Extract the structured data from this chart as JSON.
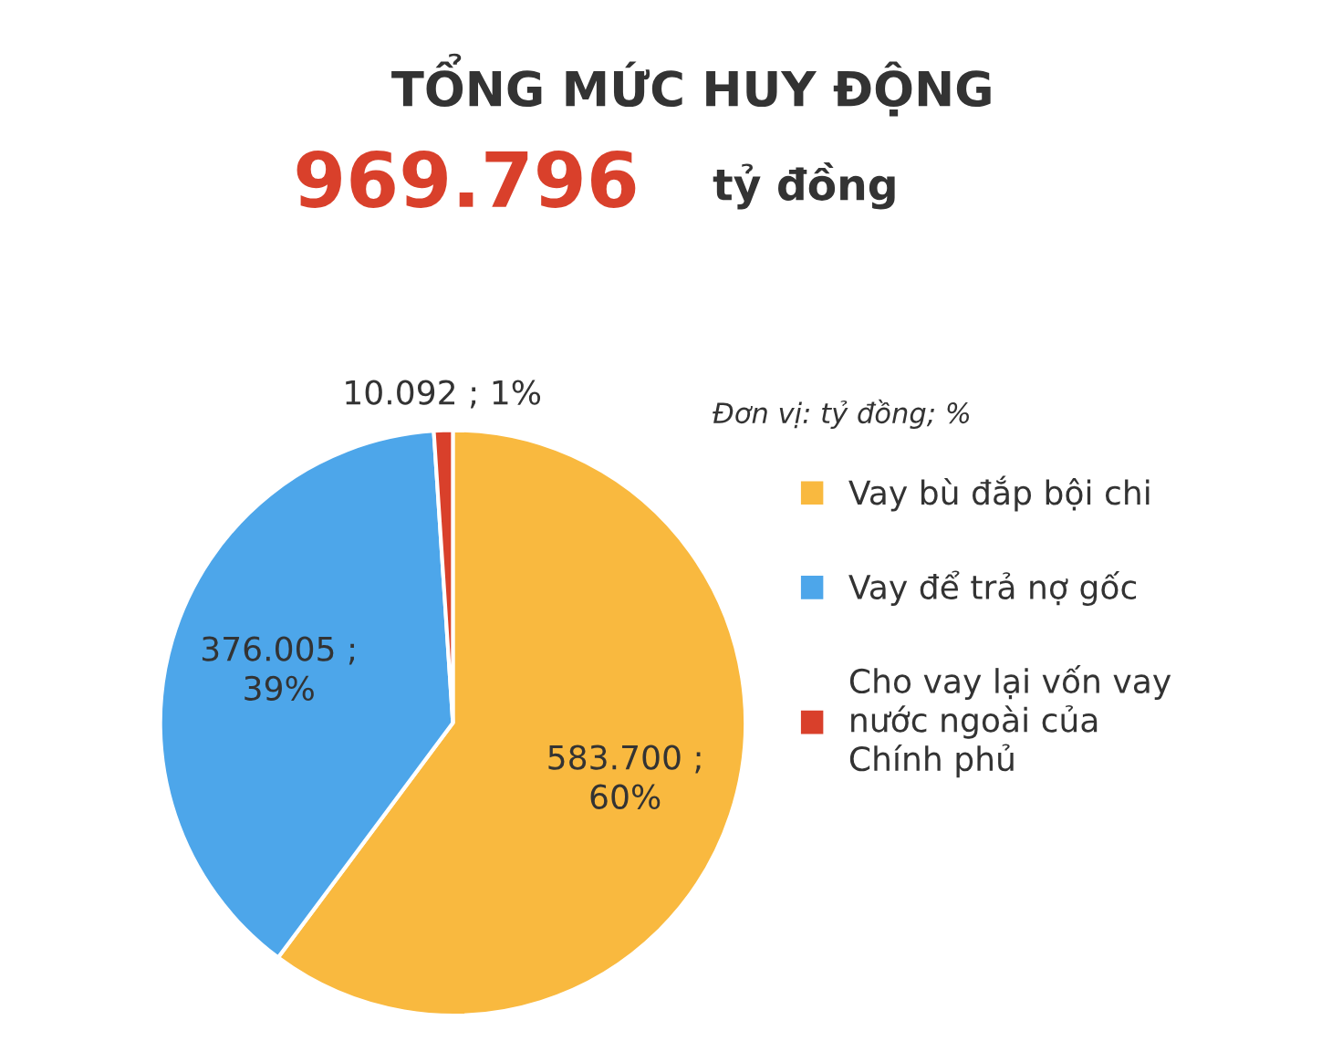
{
  "chart_data": {
    "type": "pie",
    "title": "TỔNG MỨC HUY ĐỘNG",
    "subtitle": "969.796 tỷ đồng",
    "categories": [
      "Vay bù đắp bội chi",
      "Vay để trả nợ gốc",
      "Cho vay lại vốn vay\nnước ngoài của\nChính phủ"
    ],
    "values": [
      583.7,
      376.005,
      10.092
    ],
    "colors": [
      "#f9b93f",
      "#4da6ea",
      "#d9402b"
    ],
    "value_labels": [
      "583.700 ;\n60%",
      "376.005 ;\n39%",
      "10.092 ; 1%"
    ],
    "annotations": [
      "Đơn vị: tỷ đồng; %"
    ],
    "legend": "right"
  }
}
